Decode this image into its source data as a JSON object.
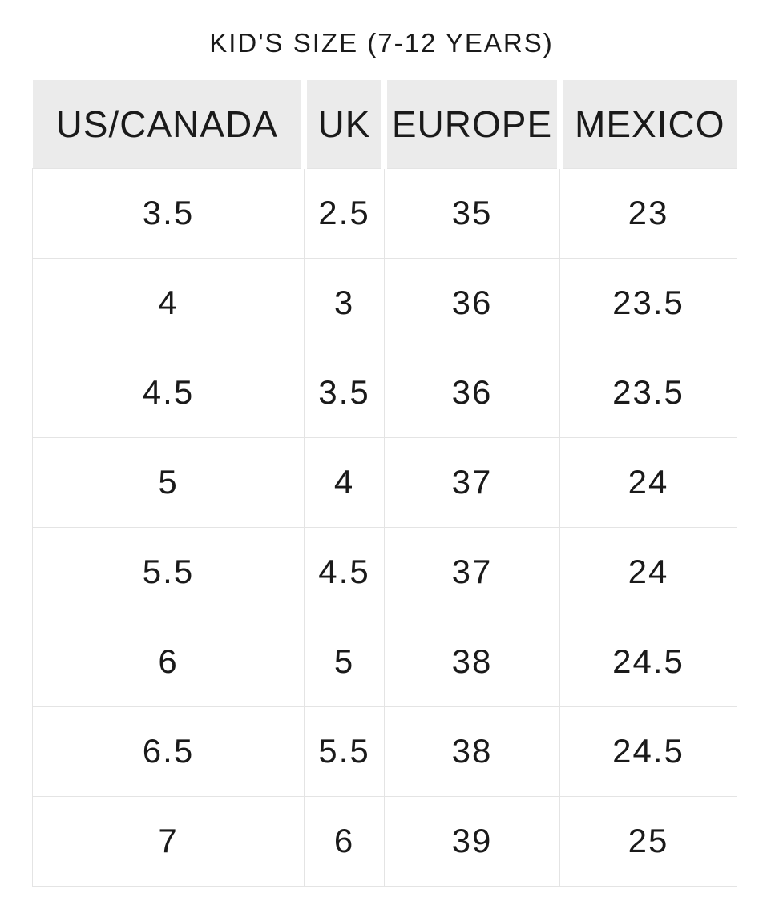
{
  "title": "KID'S SIZE (7-12 YEARS)",
  "table": {
    "headers": [
      "US/CANADA",
      "UK",
      "EUROPE",
      "MEXICO"
    ],
    "rows": [
      [
        "3.5",
        "2.5",
        "35",
        "23"
      ],
      [
        "4",
        "3",
        "36",
        "23.5"
      ],
      [
        "4.5",
        "3.5",
        "36",
        "23.5"
      ],
      [
        "5",
        "4",
        "37",
        "24"
      ],
      [
        "5.5",
        "4.5",
        "37",
        "24"
      ],
      [
        "6",
        "5",
        "38",
        "24.5"
      ],
      [
        "6.5",
        "5.5",
        "38",
        "24.5"
      ],
      [
        "7",
        "6",
        "39",
        "25"
      ]
    ]
  },
  "chart_data": {
    "type": "table",
    "title": "KID'S SIZE (7-12 YEARS)",
    "columns": [
      "US/CANADA",
      "UK",
      "EUROPE",
      "MEXICO"
    ],
    "rows": [
      [
        "3.5",
        "2.5",
        "35",
        "23"
      ],
      [
        "4",
        "3",
        "36",
        "23.5"
      ],
      [
        "4.5",
        "3.5",
        "36",
        "23.5"
      ],
      [
        "5",
        "4",
        "37",
        "24"
      ],
      [
        "5.5",
        "4.5",
        "37",
        "24"
      ],
      [
        "6",
        "5",
        "38",
        "24.5"
      ],
      [
        "6.5",
        "5.5",
        "38",
        "24.5"
      ],
      [
        "7",
        "6",
        "39",
        "25"
      ]
    ]
  },
  "colors": {
    "header_bg": "#ebebeb",
    "border": "#e4e4e4",
    "text": "#1a1a1a",
    "page_bg": "#ffffff"
  }
}
